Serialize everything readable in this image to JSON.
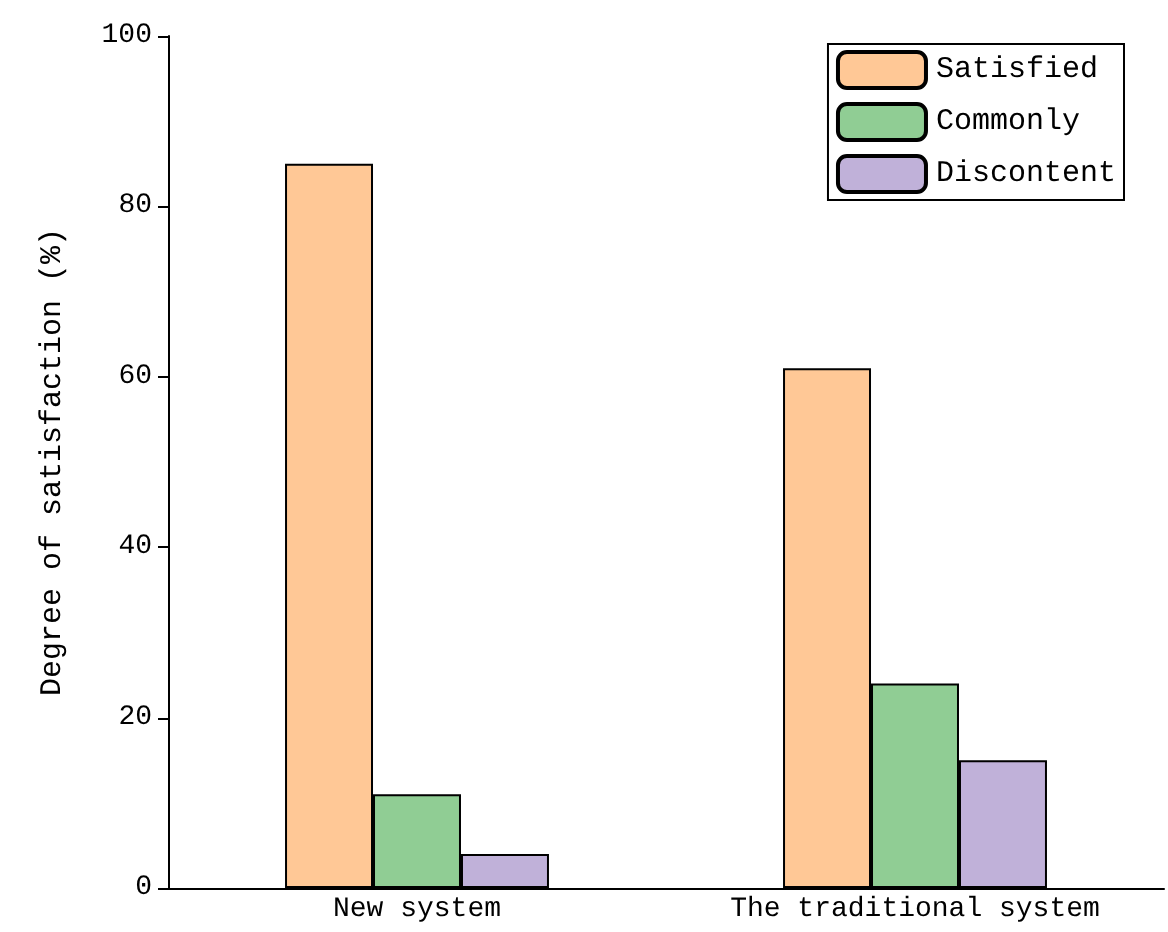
{
  "chart_data": {
    "type": "bar",
    "ylabel": "Degree of satisfaction (%)",
    "categories": [
      "New system",
      "The traditional system"
    ],
    "series": [
      {
        "name": "Satisfied",
        "color": "#ffc896",
        "values": [
          85,
          61
        ]
      },
      {
        "name": "Commonly",
        "color": "#90cd94",
        "values": [
          11,
          24
        ]
      },
      {
        "name": "Discontent",
        "color": "#c0b1d9",
        "values": [
          4,
          15
        ]
      }
    ],
    "ylim": [
      0,
      100
    ],
    "yticks": [
      0,
      20,
      40,
      60,
      80,
      100
    ],
    "grid": false,
    "legend": "top right"
  }
}
